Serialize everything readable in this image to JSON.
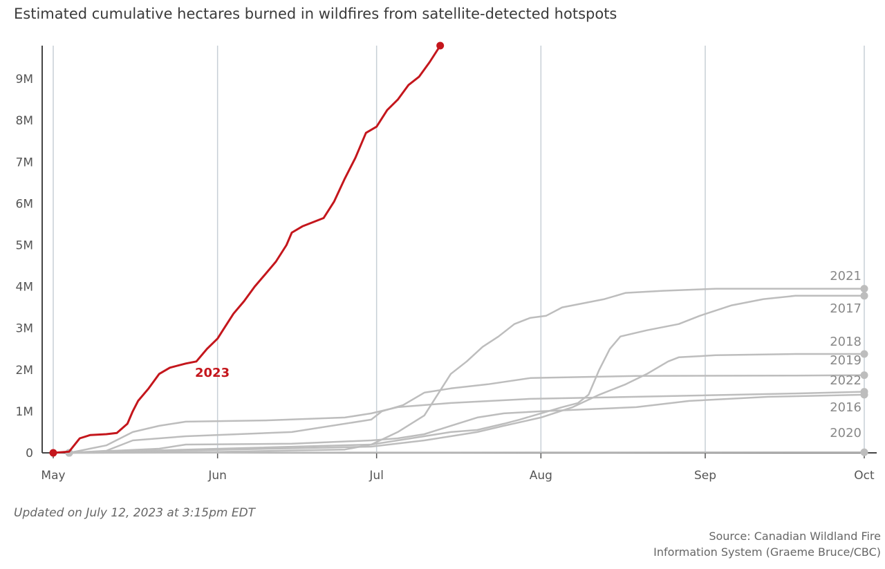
{
  "title": "Estimated cumulative hectares burned in wildfires from satellite-detected hotspots",
  "updated": "Updated on July 12, 2023 at 3:15pm EDT",
  "source_line1": "Source: Canadian Wildland Fire",
  "source_line2": "Information System (Graeme Bruce/CBC)",
  "chart_data": {
    "type": "line",
    "title": "Estimated cumulative hectares burned in wildfires from satellite-detected hotspots",
    "xlabel": "",
    "ylabel": "",
    "x_range": [
      "May 1",
      "Oct 1"
    ],
    "x_ticks": [
      {
        "label": "May",
        "day": 0
      },
      {
        "label": "Jun",
        "day": 31
      },
      {
        "label": "Jul",
        "day": 61
      },
      {
        "label": "Aug",
        "day": 92
      },
      {
        "label": "Sep",
        "day": 123
      },
      {
        "label": "Oct",
        "day": 153
      }
    ],
    "ylim": [
      0,
      9800000
    ],
    "y_ticks": [
      {
        "label": "0",
        "value": 0
      },
      {
        "label": "1M",
        "value": 1000000
      },
      {
        "label": "2M",
        "value": 2000000
      },
      {
        "label": "3M",
        "value": 3000000
      },
      {
        "label": "4M",
        "value": 4000000
      },
      {
        "label": "5M",
        "value": 5000000
      },
      {
        "label": "6M",
        "value": 6000000
      },
      {
        "label": "7M",
        "value": 7000000
      },
      {
        "label": "8M",
        "value": 8000000
      },
      {
        "label": "9M",
        "value": 9000000
      }
    ],
    "grid": "vertical",
    "colors": {
      "highlight": "#c4161c",
      "other": "#bdbdbd"
    },
    "series": [
      {
        "name": "2023",
        "highlight": true,
        "points": [
          [
            0,
            0
          ],
          [
            3,
            30000
          ],
          [
            5,
            350000
          ],
          [
            7,
            430000
          ],
          [
            10,
            450000
          ],
          [
            12,
            480000
          ],
          [
            14,
            700000
          ],
          [
            15,
            1000000
          ],
          [
            16,
            1250000
          ],
          [
            18,
            1550000
          ],
          [
            20,
            1900000
          ],
          [
            22,
            2050000
          ],
          [
            25,
            2150000
          ],
          [
            27,
            2200000
          ],
          [
            29,
            2500000
          ],
          [
            31,
            2750000
          ],
          [
            32,
            2950000
          ],
          [
            34,
            3350000
          ],
          [
            36,
            3650000
          ],
          [
            38,
            4000000
          ],
          [
            40,
            4300000
          ],
          [
            42,
            4600000
          ],
          [
            44,
            5000000
          ],
          [
            45,
            5300000
          ],
          [
            47,
            5450000
          ],
          [
            49,
            5550000
          ],
          [
            51,
            5650000
          ],
          [
            53,
            6050000
          ],
          [
            55,
            6600000
          ],
          [
            57,
            7100000
          ],
          [
            59,
            7700000
          ],
          [
            61,
            7850000
          ],
          [
            63,
            8250000
          ],
          [
            65,
            8500000
          ],
          [
            67,
            8850000
          ],
          [
            69,
            9050000
          ],
          [
            71,
            9400000
          ],
          [
            73,
            9800000
          ]
        ]
      },
      {
        "name": "2021",
        "points": [
          [
            3,
            0
          ],
          [
            30,
            20000
          ],
          [
            55,
            80000
          ],
          [
            60,
            200000
          ],
          [
            65,
            500000
          ],
          [
            70,
            900000
          ],
          [
            73,
            1500000
          ],
          [
            75,
            1900000
          ],
          [
            78,
            2200000
          ],
          [
            81,
            2550000
          ],
          [
            84,
            2800000
          ],
          [
            87,
            3100000
          ],
          [
            90,
            3250000
          ],
          [
            93,
            3300000
          ],
          [
            96,
            3500000
          ],
          [
            100,
            3600000
          ],
          [
            104,
            3700000
          ],
          [
            108,
            3850000
          ],
          [
            115,
            3900000
          ],
          [
            125,
            3950000
          ],
          [
            140,
            3950000
          ],
          [
            153,
            3950000
          ]
        ]
      },
      {
        "name": "2017",
        "points": [
          [
            3,
            0
          ],
          [
            60,
            200000
          ],
          [
            70,
            400000
          ],
          [
            75,
            500000
          ],
          [
            80,
            550000
          ],
          [
            85,
            700000
          ],
          [
            88,
            800000
          ],
          [
            92,
            950000
          ],
          [
            96,
            1100000
          ],
          [
            99,
            1200000
          ],
          [
            101,
            1400000
          ],
          [
            103,
            2000000
          ],
          [
            105,
            2500000
          ],
          [
            107,
            2800000
          ],
          [
            112,
            2950000
          ],
          [
            118,
            3100000
          ],
          [
            122,
            3300000
          ],
          [
            128,
            3550000
          ],
          [
            134,
            3700000
          ],
          [
            140,
            3780000
          ],
          [
            153,
            3780000
          ]
        ]
      },
      {
        "name": "2018",
        "points": [
          [
            3,
            0
          ],
          [
            60,
            150000
          ],
          [
            70,
            300000
          ],
          [
            75,
            400000
          ],
          [
            80,
            500000
          ],
          [
            85,
            650000
          ],
          [
            92,
            850000
          ],
          [
            98,
            1100000
          ],
          [
            103,
            1400000
          ],
          [
            108,
            1650000
          ],
          [
            112,
            1900000
          ],
          [
            116,
            2200000
          ],
          [
            118,
            2300000
          ],
          [
            125,
            2350000
          ],
          [
            140,
            2380000
          ],
          [
            153,
            2380000
          ]
        ]
      },
      {
        "name": "2019",
        "points": [
          [
            3,
            0
          ],
          [
            10,
            50000
          ],
          [
            15,
            300000
          ],
          [
            25,
            400000
          ],
          [
            45,
            500000
          ],
          [
            60,
            800000
          ],
          [
            62,
            1000000
          ],
          [
            66,
            1150000
          ],
          [
            70,
            1450000
          ],
          [
            75,
            1550000
          ],
          [
            82,
            1650000
          ],
          [
            90,
            1800000
          ],
          [
            110,
            1850000
          ],
          [
            140,
            1860000
          ],
          [
            153,
            1870000
          ]
        ]
      },
      {
        "name": "2022",
        "points": [
          [
            3,
            0
          ],
          [
            10,
            180000
          ],
          [
            15,
            500000
          ],
          [
            20,
            650000
          ],
          [
            25,
            750000
          ],
          [
            40,
            780000
          ],
          [
            55,
            850000
          ],
          [
            60,
            950000
          ],
          [
            65,
            1100000
          ],
          [
            75,
            1200000
          ],
          [
            90,
            1300000
          ],
          [
            110,
            1350000
          ],
          [
            140,
            1430000
          ],
          [
            153,
            1470000
          ]
        ]
      },
      {
        "name": "2016",
        "points": [
          [
            3,
            0
          ],
          [
            20,
            100000
          ],
          [
            25,
            200000
          ],
          [
            45,
            220000
          ],
          [
            60,
            300000
          ],
          [
            65,
            350000
          ],
          [
            70,
            450000
          ],
          [
            75,
            650000
          ],
          [
            80,
            850000
          ],
          [
            85,
            950000
          ],
          [
            92,
            1000000
          ],
          [
            110,
            1100000
          ],
          [
            120,
            1250000
          ],
          [
            135,
            1350000
          ],
          [
            153,
            1400000
          ]
        ]
      },
      {
        "name": "2020",
        "points": [
          [
            3,
            0
          ],
          [
            30,
            5000
          ],
          [
            60,
            8000
          ],
          [
            90,
            10000
          ],
          [
            120,
            12000
          ],
          [
            153,
            15000
          ]
        ]
      }
    ],
    "annotations": [
      {
        "text": "2023",
        "series": "2023"
      },
      {
        "text": "2021",
        "series": "2021"
      },
      {
        "text": "2017",
        "series": "2017"
      },
      {
        "text": "2018",
        "series": "2018"
      },
      {
        "text": "2019",
        "series": "2019"
      },
      {
        "text": "2022",
        "series": "2022"
      },
      {
        "text": "2016",
        "series": "2016"
      },
      {
        "text": "2020",
        "series": "2020"
      }
    ]
  }
}
